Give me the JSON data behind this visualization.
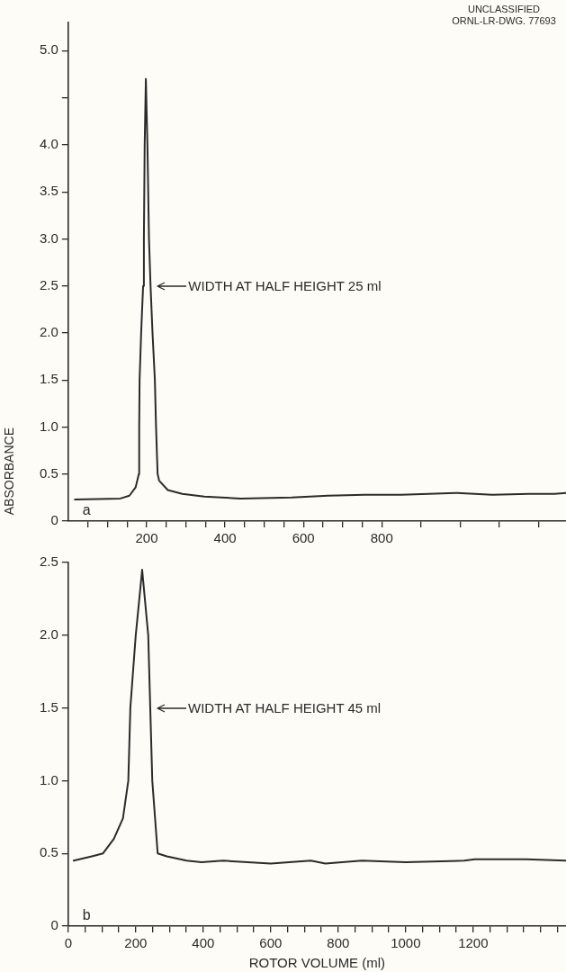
{
  "chart_data": [
    {
      "type": "line",
      "ylabel": "ABSORBANCE",
      "annotations": [
        "UNCLASSIFIED",
        "ORNL-LR-DWG. 77693",
        "a",
        {
          "text": "WIDTH AT HALF HEIGHT 25 ml",
          "x": 210,
          "y": 2.5
        }
      ],
      "marker": "none",
      "line_style": "solid",
      "grid": false,
      "legend": false,
      "xlim": [
        0,
        1270
      ],
      "xticks": [
        {
          "value": 50,
          "label": null
        },
        {
          "value": 100,
          "label": null
        },
        {
          "value": 150,
          "label": null
        },
        200,
        {
          "value": 250,
          "label": null
        },
        {
          "value": 300,
          "label": null
        },
        {
          "value": 350,
          "label": null
        },
        400,
        {
          "value": 450,
          "label": null
        },
        {
          "value": 500,
          "label": null
        },
        {
          "value": 550,
          "label": null
        },
        600,
        {
          "value": 650,
          "label": null
        },
        {
          "value": 700,
          "label": null
        },
        {
          "value": 750,
          "label": null
        },
        800,
        {
          "value": 900,
          "label": null
        },
        {
          "value": 1000,
          "label": null
        },
        {
          "value": 1100,
          "label": null
        },
        {
          "value": 1200,
          "label": null
        }
      ],
      "ylim": [
        0,
        5.3
      ],
      "yticks": [
        0,
        {
          "value": 0.5,
          "label": "0.5"
        },
        {
          "value": 1,
          "label": "1.0"
        },
        {
          "value": 1.5,
          "label": "1.5"
        },
        {
          "value": 2,
          "label": "2.0"
        },
        {
          "value": 2.5,
          "label": "2.5"
        },
        {
          "value": 3,
          "label": "3.0"
        },
        {
          "value": 3.5,
          "label": "3.5"
        },
        {
          "value": 4,
          "label": "4.0"
        },
        {
          "value": 4.5,
          "label": null
        },
        {
          "value": 5,
          "label": "5.0"
        }
      ],
      "series": [
        {
          "color": "#2b2b2b",
          "x": [
            17,
            133,
            156,
            172,
            180,
            181,
            182,
            186,
            191,
            193,
            195,
            198,
            202,
            206,
            210,
            215,
            221,
            224,
            228,
            232,
            254,
            291,
            347,
            440,
            570,
            663,
            756,
            849,
            989,
            1082,
            1175,
            1240,
            1270
          ],
          "values": [
            0.23,
            0.24,
            0.27,
            0.36,
            0.5,
            1.0,
            1.5,
            2.0,
            2.5,
            3.0,
            4.0,
            4.7,
            4.0,
            3.0,
            2.5,
            2.0,
            1.5,
            1.0,
            0.5,
            0.43,
            0.33,
            0.29,
            0.26,
            0.24,
            0.25,
            0.27,
            0.28,
            0.28,
            0.3,
            0.28,
            0.29,
            0.29,
            0.3
          ]
        }
      ]
    },
    {
      "type": "line",
      "xlabel": "ROTOR VOLUME (ml)",
      "annotations": [
        "b",
        {
          "text": "WIDTH AT HALF HEIGHT 45 ml",
          "x": 243,
          "y": 1.5
        }
      ],
      "marker": "none",
      "line_style": "solid",
      "grid": false,
      "legend": false,
      "xlim": [
        0,
        1475
      ],
      "xticks": [
        0,
        {
          "value": 50,
          "label": null
        },
        {
          "value": 100,
          "label": null
        },
        {
          "value": 150,
          "label": null
        },
        200,
        {
          "value": 250,
          "label": null
        },
        {
          "value": 300,
          "label": null
        },
        {
          "value": 350,
          "label": null
        },
        400,
        {
          "value": 450,
          "label": null
        },
        {
          "value": 500,
          "label": null
        },
        {
          "value": 550,
          "label": null
        },
        600,
        {
          "value": 650,
          "label": null
        },
        {
          "value": 700,
          "label": null
        },
        {
          "value": 750,
          "label": null
        },
        800,
        {
          "value": 850,
          "label": null
        },
        {
          "value": 900,
          "label": null
        },
        {
          "value": 950,
          "label": null
        },
        1000,
        {
          "value": 1050,
          "label": null
        },
        {
          "value": 1100,
          "label": null
        },
        {
          "value": 1150,
          "label": null
        },
        1200,
        {
          "value": 1250,
          "label": null
        },
        {
          "value": 1300,
          "label": null
        },
        {
          "value": 1350,
          "label": null
        },
        {
          "value": 1400,
          "label": null
        },
        {
          "value": 1450,
          "label": null
        }
      ],
      "ylim": [
        0,
        2.5
      ],
      "yticks": [
        0,
        {
          "value": 0.5,
          "label": "0.5"
        },
        {
          "value": 1,
          "label": "1.0"
        },
        {
          "value": 1.5,
          "label": "1.5"
        },
        {
          "value": 2,
          "label": "2.0"
        },
        {
          "value": 2.5,
          "label": "2.5"
        }
      ],
      "series": [
        {
          "color": "#2b2b2b",
          "x": [
            16,
            70,
            103,
            135,
            162,
            178,
            184,
            200,
            219,
            237,
            243,
            249,
            265,
            292,
            351,
            395,
            459,
            600,
            719,
            762,
            870,
            1000,
            1173,
            1205,
            1357,
            1475
          ],
          "values": [
            0.45,
            0.48,
            0.5,
            0.6,
            0.74,
            1.0,
            1.5,
            2.0,
            2.45,
            2.0,
            1.5,
            1.0,
            0.5,
            0.48,
            0.45,
            0.44,
            0.45,
            0.43,
            0.45,
            0.43,
            0.45,
            0.44,
            0.45,
            0.46,
            0.46,
            0.45
          ]
        }
      ]
    }
  ]
}
